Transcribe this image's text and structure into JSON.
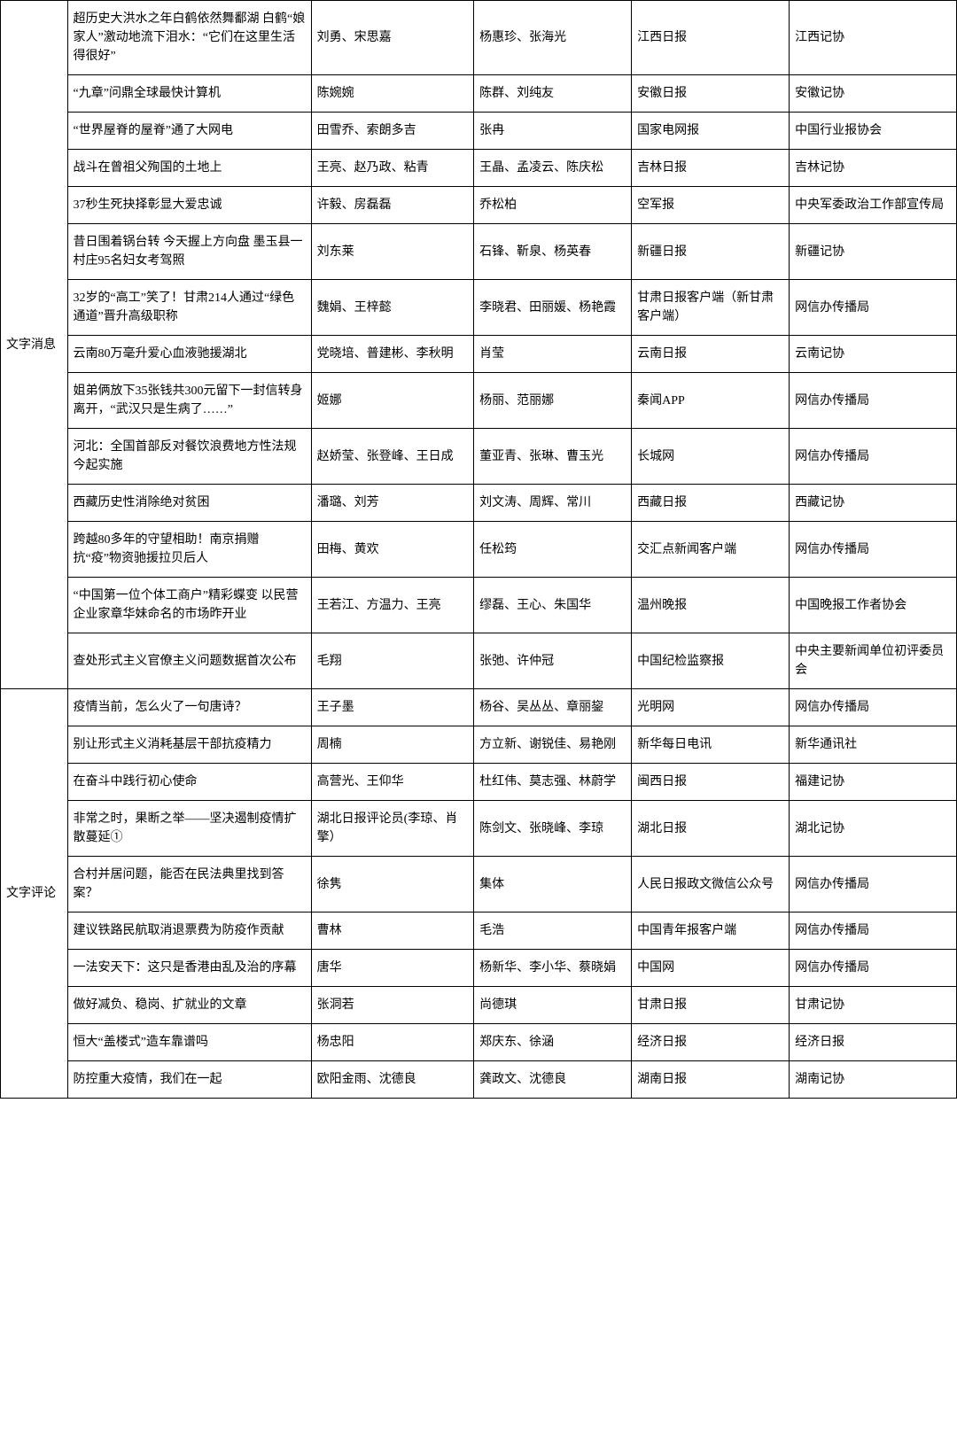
{
  "background_color": "#ffffff",
  "border_color": "#000000",
  "text_color": "#000000",
  "font_size": 14,
  "categories": [
    {
      "name": "文字消息",
      "rows": [
        {
          "title": "超历史大洪水之年白鹤依然舞鄱湖 白鹤“娘家人”激动地流下泪水：“它们在这里生活得很好”",
          "author": "刘勇、宋思嘉",
          "editor": "杨惠珍、张海光",
          "source": "江西日报",
          "org": "江西记协"
        },
        {
          "title": "“九章”问鼎全球最快计算机",
          "author": "陈婉婉",
          "editor": "陈群、刘纯友",
          "source": "安徽日报",
          "org": "安徽记协"
        },
        {
          "title": "“世界屋脊的屋脊”通了大网电",
          "author": "田雪乔、索朗多吉",
          "editor": "张冉",
          "source": "国家电网报",
          "org": "中国行业报协会"
        },
        {
          "title": "战斗在曾祖父殉国的土地上",
          "author": "王亮、赵乃政、粘青",
          "editor": "王晶、孟凌云、陈庆松",
          "source": "吉林日报",
          "org": "吉林记协"
        },
        {
          "title": "37秒生死抉择彰显大爱忠诚",
          "author": "许毅、房磊磊",
          "editor": "乔松柏",
          "source": "空军报",
          "org": "中央军委政治工作部宣传局"
        },
        {
          "title": "昔日围着锅台转 今天握上方向盘 墨玉县一村庄95名妇女考驾照",
          "author": "刘东莱",
          "editor": "石锋、靳泉、杨英春",
          "source": "新疆日报",
          "org": "新疆记协"
        },
        {
          "title": "32岁的“高工”笑了！甘肃214人通过“绿色通道”晋升高级职称",
          "author": "魏娟、王梓懿",
          "editor": "李晓君、田丽媛、杨艳霞",
          "source": "甘肃日报客户端（新甘肃客户端）",
          "org": "网信办传播局"
        },
        {
          "title": "云南80万毫升爱心血液驰援湖北",
          "author": "党晓培、普建彬、李秋明",
          "editor": "肖莹",
          "source": "云南日报",
          "org": "云南记协"
        },
        {
          "title": "姐弟俩放下35张钱共300元留下一封信转身离开，“武汉只是生病了……”",
          "author": "姬娜",
          "editor": "杨丽、范丽娜",
          "source": "秦闻APP",
          "org": "网信办传播局"
        },
        {
          "title": "河北：全国首部反对餐饮浪费地方性法规今起实施",
          "author": "赵娇莹、张登峰、王日成",
          "editor": "董亚青、张琳、曹玉光",
          "source": "长城网",
          "org": "网信办传播局"
        },
        {
          "title": "西藏历史性消除绝对贫困",
          "author": "潘璐、刘芳",
          "editor": "刘文涛、周辉、常川",
          "source": "西藏日报",
          "org": "西藏记协"
        },
        {
          "title": "跨越80多年的守望相助！南京捐赠抗“疫”物资驰援拉贝后人",
          "author": "田梅、黄欢",
          "editor": "任松筠",
          "source": "交汇点新闻客户端",
          "org": "网信办传播局"
        },
        {
          "title": "“中国第一位个体工商户”精彩蝶变 以民营企业家章华妹命名的市场昨开业",
          "author": "王若江、方温力、王亮",
          "editor": "缪磊、王心、朱国华",
          "source": "温州晚报",
          "org": "中国晚报工作者协会"
        },
        {
          "title": "查处形式主义官僚主义问题数据首次公布",
          "author": "毛翔",
          "editor": "张弛、许仲冠",
          "source": "中国纪检监察报",
          "org": "中央主要新闻单位初评委员会"
        }
      ]
    },
    {
      "name": "文字评论",
      "rows": [
        {
          "title": "疫情当前，怎么火了一句唐诗？",
          "author": "王子墨",
          "editor": "杨谷、吴丛丛、章丽鋆",
          "source": "光明网",
          "org": "网信办传播局"
        },
        {
          "title": "别让形式主义消耗基层干部抗疫精力",
          "author": "周楠",
          "editor": "方立新、谢锐佳、易艳刚",
          "source": "新华每日电讯",
          "org": "新华通讯社"
        },
        {
          "title": "在奋斗中践行初心使命",
          "author": "高营光、王仰华",
          "editor": "杜红伟、莫志强、林蔚学",
          "source": "闽西日报",
          "org": "福建记协"
        },
        {
          "title": "非常之时，果断之举——坚决遏制疫情扩散蔓延①",
          "author": "湖北日报评论员(李琼、肖擎）",
          "editor": "陈剑文、张晓峰、李琼",
          "source": "湖北日报",
          "org": "湖北记协"
        },
        {
          "title": "合村并居问题，能否在民法典里找到答案？",
          "author": "徐隽",
          "editor": "集体",
          "source": "人民日报政文微信公众号",
          "org": "网信办传播局"
        },
        {
          "title": "建议铁路民航取消退票费为防疫作贡献",
          "author": "曹林",
          "editor": "毛浩",
          "source": "中国青年报客户端",
          "org": "网信办传播局"
        },
        {
          "title": "一法安天下：这只是香港由乱及治的序幕",
          "author": "唐华",
          "editor": "杨新华、李小华、蔡晓娟",
          "source": "中国网",
          "org": "网信办传播局"
        },
        {
          "title": "做好减负、稳岗、扩就业的文章",
          "author": "张洞若",
          "editor": "尚德琪",
          "source": "甘肃日报",
          "org": "甘肃记协"
        },
        {
          "title": "恒大“盖楼式”造车靠谱吗",
          "author": "杨忠阳",
          "editor": "郑庆东、徐涵",
          "source": "经济日报",
          "org": "经济日报"
        },
        {
          "title": "防控重大疫情，我们在一起",
          "author": "欧阳金雨、沈德良",
          "editor": "龚政文、沈德良",
          "source": "湖南日报",
          "org": "湖南记协"
        }
      ]
    }
  ]
}
